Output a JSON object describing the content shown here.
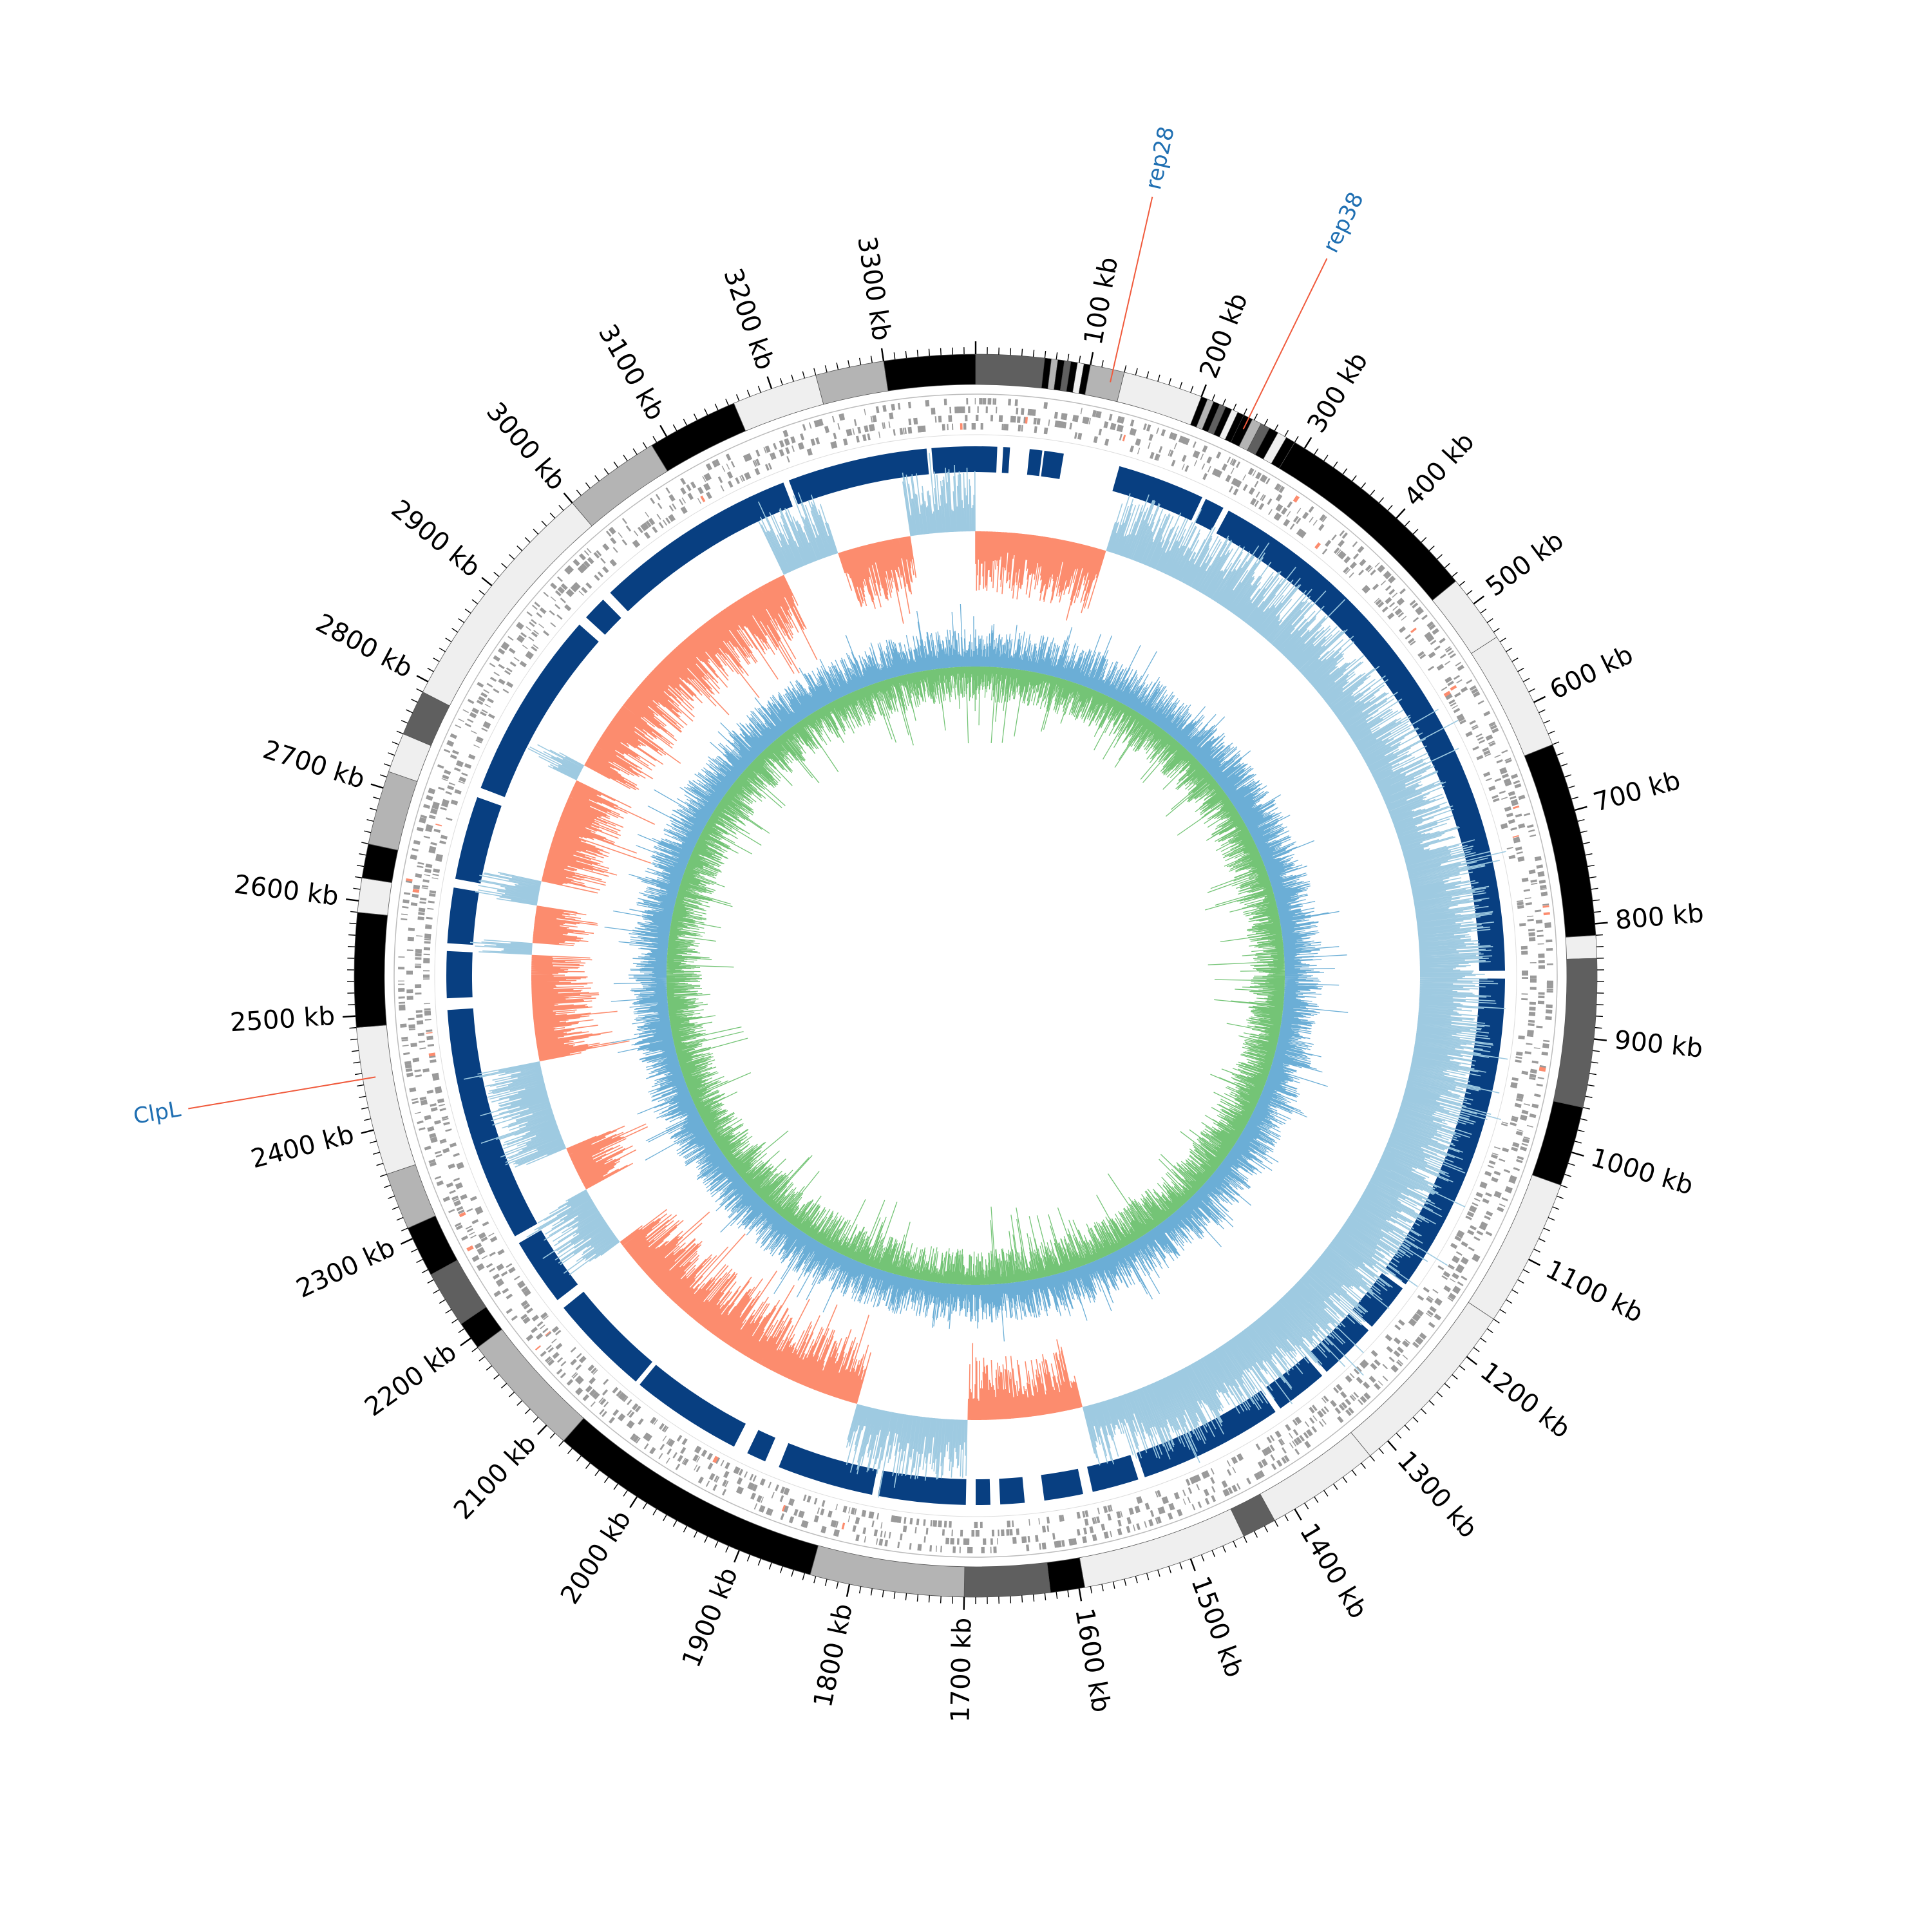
{
  "chart_data": {
    "type": "circular-genome",
    "genome_length_kb": 3380,
    "axis": {
      "unit": "kb",
      "major_step_kb": 100,
      "minor_step_kb": 10,
      "tick_labels": [
        "100 kb",
        "200 kb",
        "300 kb",
        "400 kb",
        "500 kb",
        "600 kb",
        "700 kb",
        "800 kb",
        "900 kb",
        "1000 kb",
        "1100 kb",
        "1200 kb",
        "1300 kb",
        "1400 kb",
        "1500 kb",
        "1600 kb",
        "1700 kb",
        "1800 kb",
        "1900 kb",
        "2000 kb",
        "2100 kb",
        "2200 kb",
        "2300 kb",
        "2400 kb",
        "2500 kb",
        "2600 kb",
        "2700 kb",
        "2800 kb",
        "2900 kb",
        "3000 kb",
        "3100 kb",
        "3200 kb",
        "3300 kb"
      ]
    },
    "annotations": [
      {
        "label": "rep28",
        "position_kb": 120
      },
      {
        "label": "rep38",
        "position_kb": 245
      },
      {
        "label": "ClpL",
        "position_kb": 2445
      }
    ],
    "outer_block_track": [
      {
        "start": 0,
        "end": 60,
        "shade": "dark"
      },
      {
        "start": 60,
        "end": 100,
        "shade": "mixed"
      },
      {
        "start": 100,
        "end": 130,
        "shade": "mid"
      },
      {
        "start": 130,
        "end": 200,
        "shade": "light"
      },
      {
        "start": 200,
        "end": 240,
        "shade": "mixed"
      },
      {
        "start": 240,
        "end": 290,
        "shade": "dark-mixed"
      },
      {
        "start": 290,
        "end": 475,
        "shade": "black"
      },
      {
        "start": 475,
        "end": 535,
        "shade": "light"
      },
      {
        "start": 535,
        "end": 640,
        "shade": "light"
      },
      {
        "start": 640,
        "end": 810,
        "shade": "black"
      },
      {
        "start": 810,
        "end": 830,
        "shade": "light"
      },
      {
        "start": 830,
        "end": 960,
        "shade": "dark"
      },
      {
        "start": 960,
        "end": 1030,
        "shade": "black"
      },
      {
        "start": 1030,
        "end": 1160,
        "shade": "light"
      },
      {
        "start": 1160,
        "end": 1320,
        "shade": "light"
      },
      {
        "start": 1320,
        "end": 1420,
        "shade": "light"
      },
      {
        "start": 1420,
        "end": 1450,
        "shade": "dark"
      },
      {
        "start": 1450,
        "end": 1595,
        "shade": "light"
      },
      {
        "start": 1595,
        "end": 1625,
        "shade": "black"
      },
      {
        "start": 1625,
        "end": 1700,
        "shade": "dark"
      },
      {
        "start": 1700,
        "end": 1835,
        "shade": "mid"
      },
      {
        "start": 1835,
        "end": 2080,
        "shade": "black"
      },
      {
        "start": 2080,
        "end": 2190,
        "shade": "mid"
      },
      {
        "start": 2190,
        "end": 2215,
        "shade": "black"
      },
      {
        "start": 2215,
        "end": 2265,
        "shade": "dark"
      },
      {
        "start": 2265,
        "end": 2310,
        "shade": "black"
      },
      {
        "start": 2310,
        "end": 2360,
        "shade": "mid"
      },
      {
        "start": 2360,
        "end": 2490,
        "shade": "light"
      },
      {
        "start": 2490,
        "end": 2590,
        "shade": "black"
      },
      {
        "start": 2590,
        "end": 2620,
        "shade": "light"
      },
      {
        "start": 2620,
        "end": 2650,
        "shade": "black"
      },
      {
        "start": 2650,
        "end": 2715,
        "shade": "mid"
      },
      {
        "start": 2715,
        "end": 2750,
        "shade": "light"
      },
      {
        "start": 2750,
        "end": 2790,
        "shade": "dark"
      },
      {
        "start": 2790,
        "end": 3000,
        "shade": "light"
      },
      {
        "start": 3000,
        "end": 3085,
        "shade": "mid"
      },
      {
        "start": 3085,
        "end": 3165,
        "shade": "black"
      },
      {
        "start": 3165,
        "end": 3240,
        "shade": "light"
      },
      {
        "start": 3240,
        "end": 3300,
        "shade": "mid"
      },
      {
        "start": 3300,
        "end": 3380,
        "shade": "black"
      }
    ],
    "blue_track_gaps_kb": [
      [
        22,
        28
      ],
      [
        35,
        55
      ],
      [
        68,
        70
      ],
      [
        90,
        148
      ],
      [
        238,
        242
      ],
      [
        262,
        268
      ],
      [
        840,
        848
      ],
      [
        1180,
        1185
      ],
      [
        1235,
        1240
      ],
      [
        1300,
        1306
      ],
      [
        1360,
        1366
      ],
      [
        1515,
        1522
      ],
      [
        1570,
        1580
      ],
      [
        1620,
        1640
      ],
      [
        1665,
        1675
      ],
      [
        1690,
        1700
      ],
      [
        1790,
        1796
      ],
      [
        1895,
        1910
      ],
      [
        1930,
        1945
      ],
      [
        2060,
        2065
      ],
      [
        2170,
        2180
      ],
      [
        2250,
        2258
      ],
      [
        2500,
        2512
      ],
      [
        2560,
        2568
      ],
      [
        2625,
        2634
      ],
      [
        2720,
        2730
      ],
      [
        2925,
        2935
      ],
      [
        2960,
        2970
      ],
      [
        3180,
        3186
      ],
      [
        3330,
        3335
      ]
    ],
    "skew_positive_ranges_kb": [
      [
        0,
        160
      ],
      [
        1560,
        1700
      ],
      [
        1835,
        2190
      ],
      [
        2265,
        2320
      ],
      [
        2430,
        2560
      ],
      [
        2575,
        2620
      ],
      [
        2650,
        2780
      ],
      [
        2800,
        3140
      ],
      [
        3210,
        3300
      ]
    ],
    "colors": {
      "black": "#000000",
      "dark": "#5f5f5f",
      "mid": "#b4b4b4",
      "light": "#efefef",
      "feature_gray": "#9a9a9a",
      "blue_track": "#083f81",
      "skew_positive": "#fc8c6e",
      "skew_negative": "#9ecae1",
      "gc_outer": "#6baed6",
      "gc_inner": "#74c476",
      "pointer_line": "#f05a3c",
      "annotation_text": "#1f6fb2"
    }
  }
}
